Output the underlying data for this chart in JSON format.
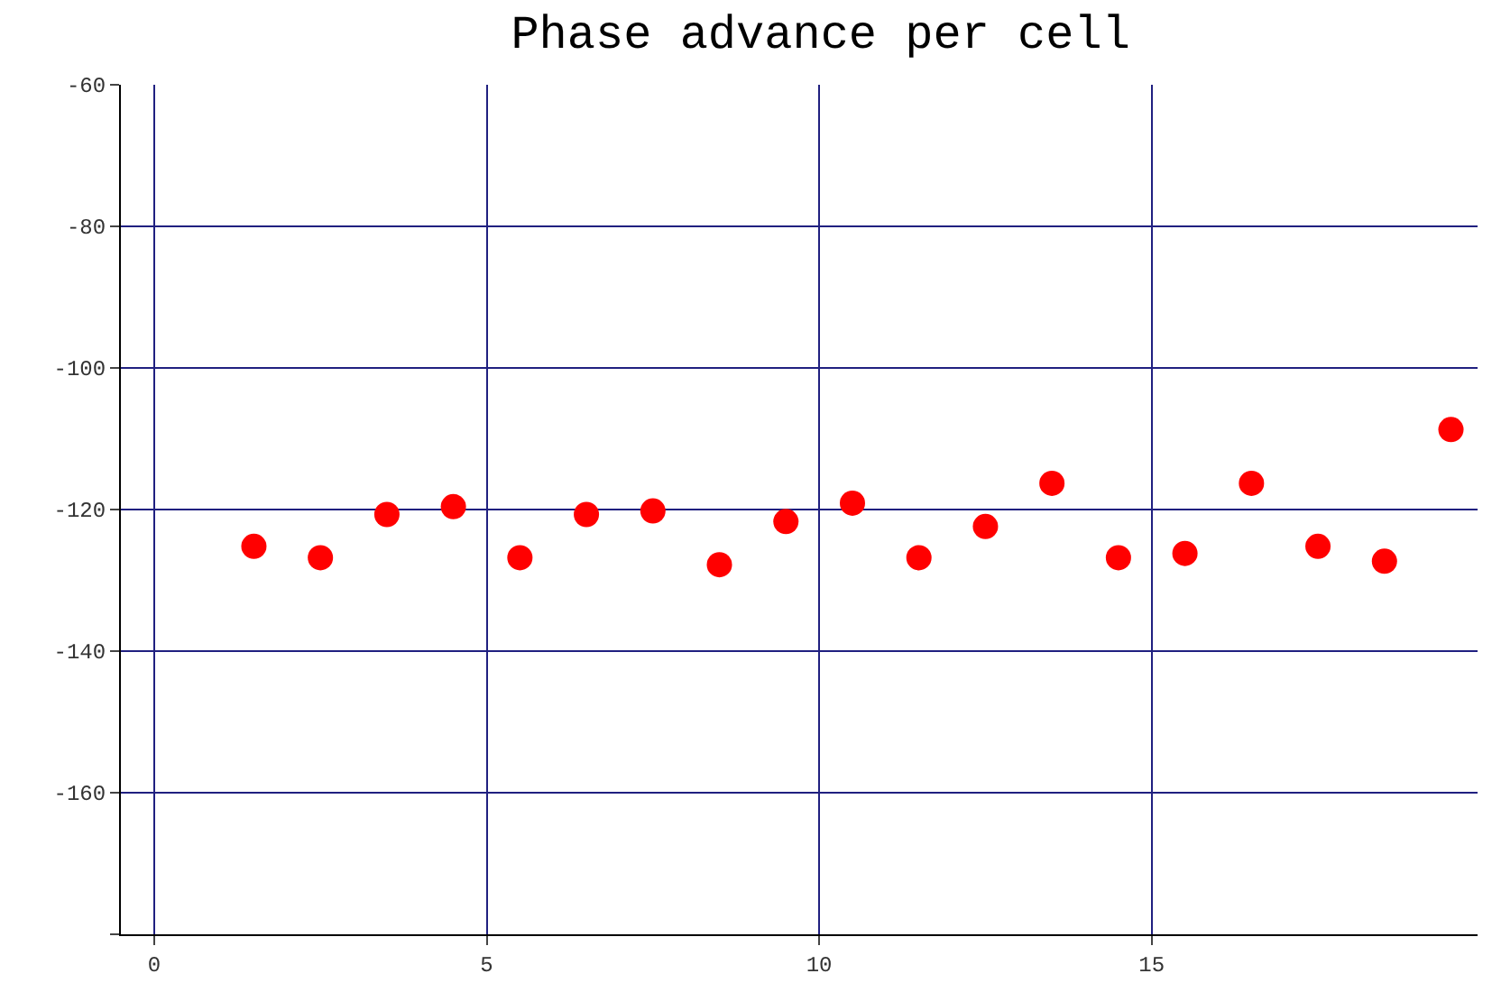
{
  "chart_data": {
    "type": "scatter",
    "title": "Phase advance per cell",
    "x": [
      1.5,
      2.5,
      3.5,
      4.5,
      5.5,
      6.5,
      7.5,
      8.5,
      9.5,
      10.5,
      11.5,
      12.5,
      13.5,
      14.5,
      15.5,
      16.5,
      17.5,
      18.5,
      19.5
    ],
    "series": [
      {
        "color": "#ff0000",
        "values": [
          -125.2,
          -126.8,
          -120.7,
          -119.6,
          -126.8,
          -120.7,
          -120.2,
          -127.8,
          -121.7,
          -119.1,
          -126.8,
          -122.4,
          -116.3,
          -126.8,
          -126.2,
          -116.3,
          -125.2,
          -127.3,
          -108.7
        ]
      }
    ],
    "xlim": [
      -0.5,
      19.9
    ],
    "ylim": [
      -180,
      -60
    ],
    "xticks": [
      0,
      5,
      10,
      15
    ],
    "yticks": [
      {
        "value": -180,
        "label": null
      },
      -160,
      -140,
      -120,
      -100,
      -80,
      -60
    ],
    "grid": true,
    "marker": "circle",
    "legend": false
  }
}
